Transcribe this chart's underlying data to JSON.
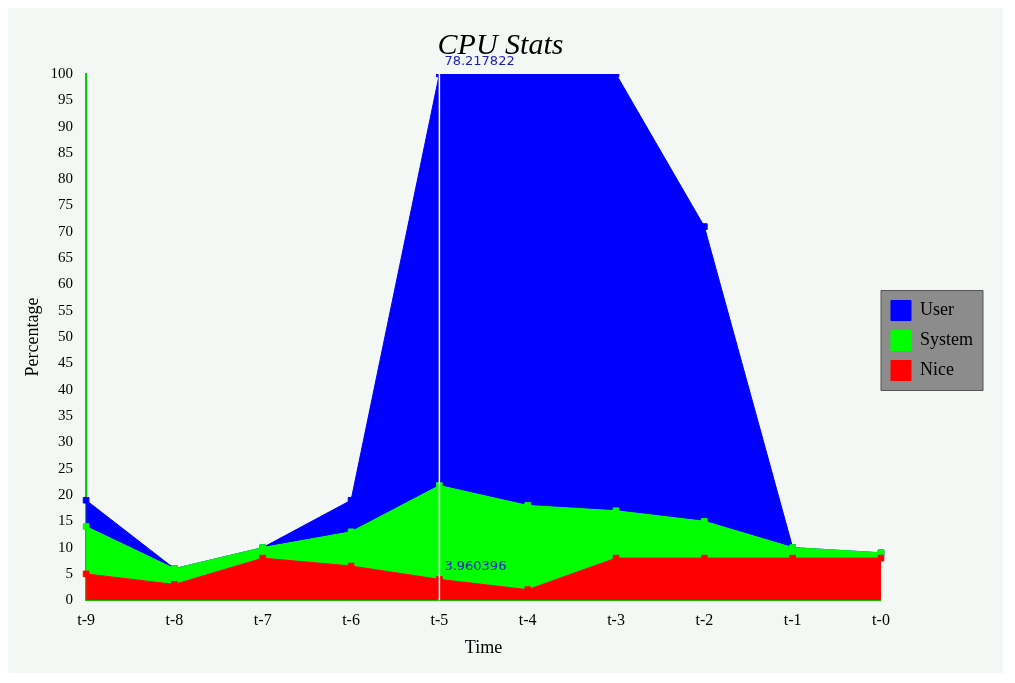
{
  "chart_data": {
    "type": "area",
    "title": "CPU Stats",
    "xlabel": "Time",
    "ylabel": "Percentage",
    "categories": [
      "t-9",
      "t-8",
      "t-7",
      "t-6",
      "t-5",
      "t-4",
      "t-3",
      "t-2",
      "t-1",
      "t-0"
    ],
    "series": [
      {
        "name": "Nice",
        "color": "#ff0000",
        "values": [
          5,
          3,
          8,
          6.5,
          3.960396,
          2,
          8,
          8,
          8,
          8
        ]
      },
      {
        "name": "System",
        "color": "#00ff00",
        "values": [
          9,
          3,
          2,
          6.5,
          17.821782,
          16,
          9,
          7,
          2,
          1
        ]
      },
      {
        "name": "User",
        "color": "#0000ff",
        "values": [
          5,
          0,
          0,
          6,
          78.217822,
          82,
          83,
          56,
          0,
          0
        ]
      }
    ],
    "stacked": true,
    "ylim": [
      0,
      100
    ],
    "yticks": [
      0,
      5,
      10,
      15,
      20,
      25,
      30,
      35,
      40,
      45,
      50,
      55,
      60,
      65,
      70,
      75,
      80,
      85,
      90,
      95,
      100
    ],
    "grid": false,
    "legend": "right",
    "marker": "square",
    "ref_lines": [
      {
        "axis": "x",
        "value": "t-5",
        "color": "#ffffff"
      }
    ],
    "annotations": [
      {
        "text": "78.217822",
        "x": "t-5",
        "y": 100
      },
      {
        "text": "3.960396",
        "x": "t-5",
        "y": 3.960396
      }
    ]
  }
}
